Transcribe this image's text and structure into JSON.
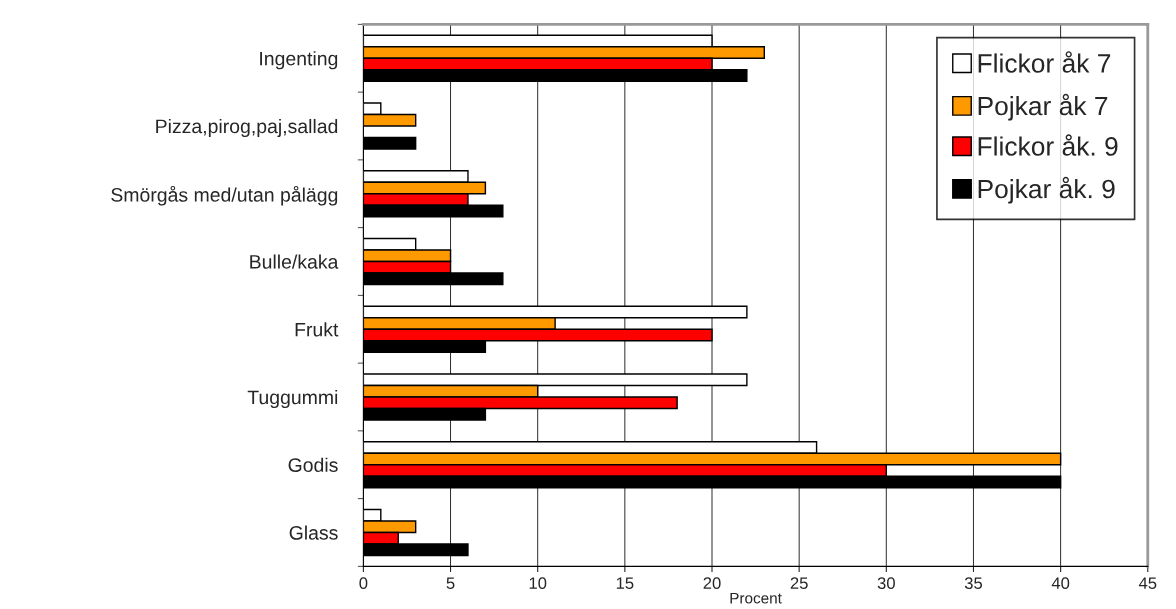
{
  "chart_data": {
    "type": "bar",
    "orientation": "horizontal",
    "xlabel": "Procent",
    "categories": [
      "Ingenting",
      "Pizza,pirog,paj,sallad",
      "Smörgås med/utan pålägg",
      "Bulle/kaka",
      "Frukt",
      "Tuggummi",
      "Godis",
      "Glass"
    ],
    "series": [
      {
        "name": "Flickor åk 7",
        "color": "#ffffff",
        "values": [
          20,
          1,
          6,
          3,
          22,
          22,
          26,
          1
        ]
      },
      {
        "name": "Pojkar åk 7",
        "color": "#ff9900",
        "values": [
          23,
          3,
          7,
          5,
          11,
          10,
          40,
          3
        ]
      },
      {
        "name": "Flickor åk. 9",
        "color": "#ff0000",
        "values": [
          20,
          null,
          6,
          5,
          20,
          18,
          30,
          2
        ]
      },
      {
        "name": "Pojkar åk. 9",
        "color": "#000000",
        "values": [
          22,
          3,
          8,
          8,
          7,
          7,
          40,
          6
        ]
      }
    ],
    "xlim": [
      0,
      45
    ],
    "xticks": [
      0,
      5,
      10,
      15,
      20,
      25,
      30,
      35,
      40,
      45
    ],
    "grid": "x",
    "legend": "top right"
  }
}
